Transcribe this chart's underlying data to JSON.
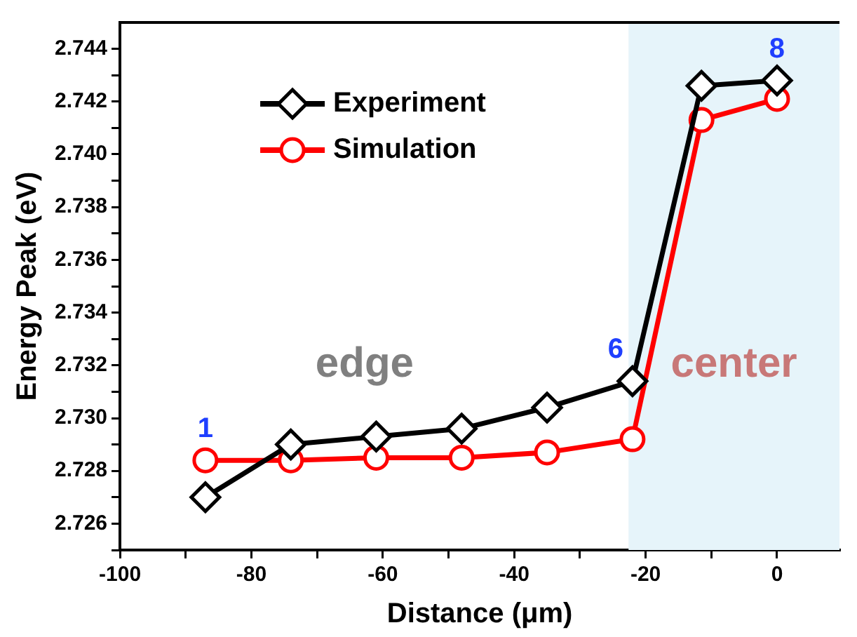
{
  "chart_data": {
    "type": "line",
    "xlabel": "Distance (μm)",
    "ylabel": "Energy Peak (eV)",
    "xlim": [
      -100,
      9.5
    ],
    "ylim": [
      2.725,
      2.745
    ],
    "xticks": [
      -100,
      {
        "value": -90,
        "label": null
      },
      -80,
      {
        "value": -70,
        "label": null
      },
      -60,
      {
        "value": -50,
        "label": null
      },
      -40,
      {
        "value": -30,
        "label": null
      },
      -20,
      {
        "value": -10,
        "label": null
      },
      0
    ],
    "yticks": [
      {
        "value": 2.725,
        "label": null
      },
      2.726,
      {
        "value": 2.727,
        "label": null
      },
      2.728,
      {
        "value": 2.729,
        "label": null
      },
      {
        "value": 2.73,
        "label": "2.730"
      },
      {
        "value": 2.731,
        "label": null
      },
      2.732,
      {
        "value": 2.733,
        "label": null
      },
      2.734,
      {
        "value": 2.735,
        "label": null
      },
      2.736,
      {
        "value": 2.737,
        "label": null
      },
      2.738,
      {
        "value": 2.739,
        "label": null
      },
      {
        "value": 2.74,
        "label": "2.740"
      },
      {
        "value": 2.741,
        "label": null
      },
      2.742,
      {
        "value": 2.743,
        "label": null
      },
      2.744
    ],
    "x": [
      -87,
      -74,
      -61,
      -48,
      -35,
      -22,
      -11.5,
      0
    ],
    "series": [
      {
        "name": "Experiment",
        "color": "#000000",
        "marker": "diamond",
        "values": [
          2.727,
          2.729,
          2.7293,
          2.7296,
          2.7304,
          2.7314,
          2.7426,
          2.7428
        ]
      },
      {
        "name": "Simulation",
        "color": "#ff0000",
        "marker": "circle",
        "values": [
          2.7284,
          2.7284,
          2.7285,
          2.7285,
          2.7287,
          2.7292,
          2.7413,
          2.7421
        ]
      }
    ],
    "bands": [
      {
        "axis": "x",
        "from": -22.6,
        "to": 9.5,
        "label": "center",
        "color": "#e6f4fa"
      }
    ],
    "annotations": [
      {
        "text": "1",
        "x": -87,
        "y": 2.7284
      },
      {
        "text": "6",
        "x": -22,
        "y": 2.7314
      },
      {
        "text": "8",
        "x": 0,
        "y": 2.7428
      },
      "edge"
    ],
    "legend": "top left",
    "grid": false,
    "line_style": "solid"
  }
}
